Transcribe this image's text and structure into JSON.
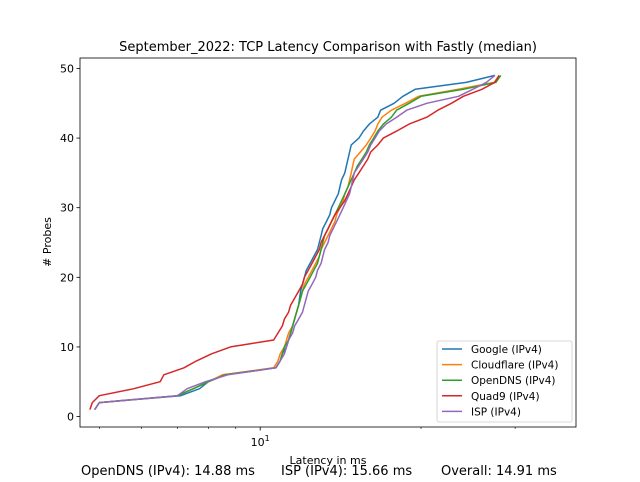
{
  "chart_data": {
    "type": "line",
    "title": "September_2022: TCP Latency Comparison with Fastly (median)",
    "xlabel": "Latency in ms",
    "ylabel": "# Probes",
    "xscale": "log",
    "xlim": [
      4.6,
      39
    ],
    "ylim": [
      -1.5,
      51.5
    ],
    "x_ticks": [
      {
        "value": 10,
        "label": "10^1"
      }
    ],
    "y_ticks": [
      0,
      10,
      20,
      30,
      40,
      50
    ],
    "grid": false,
    "legend_position": "lower right",
    "series": [
      {
        "name": "Google (IPv4)",
        "color": "#1f77b4",
        "x": [
          4.9,
          5.0,
          7.1,
          7.7,
          8.0,
          8.6,
          10.7,
          10.9,
          11.0,
          11.2,
          11.3,
          11.4,
          11.5,
          11.6,
          11.7,
          11.8,
          11.85,
          11.9,
          12.0,
          12.1,
          12.2,
          12.4,
          12.6,
          12.8,
          12.9,
          13.0,
          13.1,
          13.3,
          13.5,
          13.6,
          13.8,
          14.0,
          14.1,
          14.2,
          14.4,
          14.5,
          14.6,
          14.7,
          14.8,
          15.3,
          15.6,
          16.0,
          16.6,
          16.8,
          17.8,
          18.5,
          19.5,
          24.3,
          27.5
        ],
        "y": [
          1,
          2,
          3,
          4,
          5,
          6,
          7,
          8,
          9,
          10,
          11,
          12,
          13,
          14,
          15,
          16,
          17,
          18,
          19,
          20,
          21,
          22,
          23,
          24,
          25,
          26,
          27,
          28,
          29,
          30,
          31,
          32,
          33,
          34,
          35,
          36,
          37,
          38,
          39,
          40,
          41,
          42,
          43,
          44,
          45,
          46,
          47,
          48,
          49
        ]
      },
      {
        "name": "Cloudflare (IPv4)",
        "color": "#ff7f0e",
        "x": [
          4.9,
          5.0,
          7.0,
          7.5,
          8.0,
          8.5,
          10.6,
          10.8,
          10.9,
          11.1,
          11.2,
          11.3,
          11.5,
          11.6,
          11.7,
          11.8,
          11.9,
          12.0,
          12.1,
          12.3,
          12.5,
          12.7,
          12.9,
          13.0,
          13.2,
          13.4,
          13.6,
          13.8,
          13.9,
          14.1,
          14.3,
          14.4,
          14.6,
          14.7,
          14.8,
          14.9,
          15.0,
          15.4,
          15.8,
          16.1,
          16.4,
          16.6,
          16.9,
          17.6,
          18.7,
          19.8,
          23.5,
          27.4,
          28.0
        ],
        "y": [
          1,
          2,
          3,
          4,
          5,
          6,
          7,
          8,
          9,
          10,
          11,
          12,
          13,
          14,
          15,
          16,
          17,
          18,
          19,
          20,
          21,
          22,
          23,
          24,
          25,
          26,
          27,
          28,
          29,
          30,
          31,
          32,
          33,
          34,
          35,
          36,
          37,
          38,
          39,
          40,
          41,
          42,
          43,
          44,
          45,
          46,
          47,
          48,
          49
        ]
      },
      {
        "name": "OpenDNS (IPv4)",
        "color": "#2ca02c",
        "x": [
          4.9,
          5.0,
          7.0,
          7.5,
          8.0,
          8.6,
          10.7,
          10.9,
          11.0,
          11.1,
          11.3,
          11.4,
          11.5,
          11.6,
          11.7,
          11.8,
          11.9,
          12.0,
          12.2,
          12.4,
          12.6,
          12.8,
          12.9,
          13.0,
          13.1,
          13.2,
          13.4,
          13.6,
          13.8,
          14.0,
          14.2,
          14.4,
          14.6,
          14.8,
          15.0,
          15.2,
          15.5,
          15.8,
          16.0,
          16.3,
          16.6,
          17.0,
          17.6,
          18.0,
          19.0,
          20.0,
          24.0,
          27.6,
          28.2
        ],
        "y": [
          1,
          2,
          3,
          4,
          5,
          6,
          7,
          8,
          9,
          10,
          11,
          12,
          13,
          14,
          15,
          16,
          17,
          18,
          19,
          20,
          21,
          22,
          23,
          24,
          25,
          26,
          27,
          28,
          29,
          30,
          31,
          32,
          33,
          34,
          35,
          36,
          37,
          38,
          39,
          40,
          41,
          42,
          43,
          44,
          45,
          46,
          47,
          48,
          49
        ]
      },
      {
        "name": "Quad9 (IPv4)",
        "color": "#d62728",
        "x": [
          4.8,
          4.85,
          5.0,
          5.8,
          6.5,
          6.6,
          7.2,
          7.6,
          8.1,
          8.8,
          10.6,
          10.8,
          11.0,
          11.1,
          11.3,
          11.4,
          11.6,
          11.8,
          12.0,
          12.1,
          12.3,
          12.5,
          12.7,
          12.9,
          13.0,
          13.2,
          13.4,
          13.6,
          13.8,
          14.1,
          14.4,
          14.6,
          14.8,
          15.0,
          15.3,
          15.6,
          15.9,
          16.1,
          16.6,
          17.0,
          18.0,
          19.0,
          20.5,
          21.5,
          22.8,
          24.0,
          26.0,
          27.5,
          28.0
        ],
        "y": [
          1,
          2,
          3,
          4,
          5,
          6,
          7,
          8,
          9,
          10,
          11,
          12,
          13,
          14,
          15,
          16,
          17,
          18,
          19,
          20,
          21,
          22,
          23,
          24,
          25,
          26,
          27,
          28,
          29,
          30,
          31,
          32,
          33,
          34,
          35,
          36,
          37,
          38,
          39,
          40,
          41,
          42,
          43,
          44,
          45,
          46,
          47,
          48,
          49
        ]
      },
      {
        "name": "ISP (IPv4)",
        "color": "#9467bd",
        "x": [
          4.9,
          5.0,
          7.0,
          7.3,
          7.9,
          8.7,
          10.7,
          10.9,
          11.1,
          11.2,
          11.3,
          11.5,
          11.6,
          11.8,
          12.0,
          12.1,
          12.2,
          12.3,
          12.5,
          12.7,
          12.8,
          13.0,
          13.1,
          13.2,
          13.4,
          13.5,
          13.7,
          13.9,
          14.1,
          14.3,
          14.5,
          14.7,
          14.8,
          14.9,
          15.0,
          15.3,
          15.6,
          15.9,
          16.1,
          16.4,
          16.7,
          17.2,
          18.0,
          18.8,
          20.5,
          23.5,
          25.0,
          26.5,
          27.5
        ],
        "y": [
          1,
          2,
          3,
          4,
          5,
          6,
          7,
          8,
          9,
          10,
          11,
          12,
          13,
          14,
          15,
          16,
          17,
          18,
          19,
          20,
          21,
          22,
          23,
          24,
          25,
          26,
          27,
          28,
          29,
          30,
          31,
          32,
          33,
          34,
          35,
          36,
          37,
          38,
          39,
          40,
          41,
          42,
          43,
          44,
          45,
          46,
          47,
          48,
          49
        ]
      }
    ],
    "footer": [
      "OpenDNS (IPv4): 14.88 ms",
      "ISP (IPv4): 15.66 ms",
      "Overall: 14.91 ms"
    ]
  }
}
